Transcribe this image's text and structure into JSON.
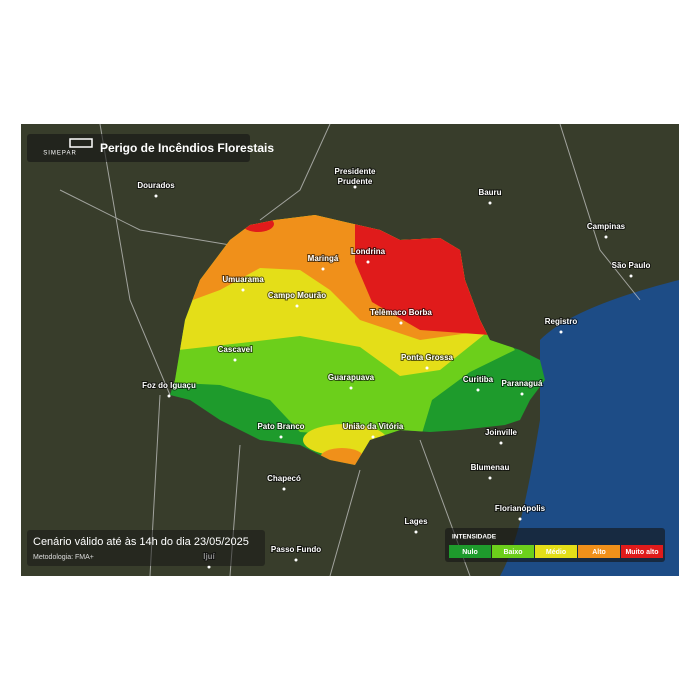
{
  "header": {
    "brand": "SIMEPAR",
    "title": "Perigo de Incêndios Florestais"
  },
  "cities": [
    "Dourados",
    "Presidente Prudente",
    "Bauru",
    "Campinas",
    "São Paulo",
    "Registro",
    "Umuarama",
    "Maringá",
    "Londrina",
    "Campo Mourão",
    "Telêmaco Borba",
    "Cascavel",
    "Ponta Grossa",
    "Foz do Iguaçu",
    "Guarapuava",
    "Curitiba",
    "Paranaguá",
    "Pato Branco",
    "União da Vitória",
    "Joinville",
    "Chapecó",
    "Blumenau",
    "Florianópolis",
    "Lages",
    "Passo Fundo",
    "Ijuí"
  ],
  "footer": {
    "validity": "Cenário válido até às 14h do dia 23/05/2025",
    "method": "Metodologia: FMA+"
  },
  "legend": {
    "title": "INTENSIDADE",
    "items": [
      {
        "name": "Nulo",
        "color": "#1e9b2c"
      },
      {
        "name": "Baixo",
        "color": "#6ccf1b"
      },
      {
        "name": "Médio",
        "color": "#e4de18"
      },
      {
        "name": "Alto",
        "color": "#f0901a"
      },
      {
        "name": "Muito alto",
        "color": "#e01b1b"
      }
    ]
  }
}
